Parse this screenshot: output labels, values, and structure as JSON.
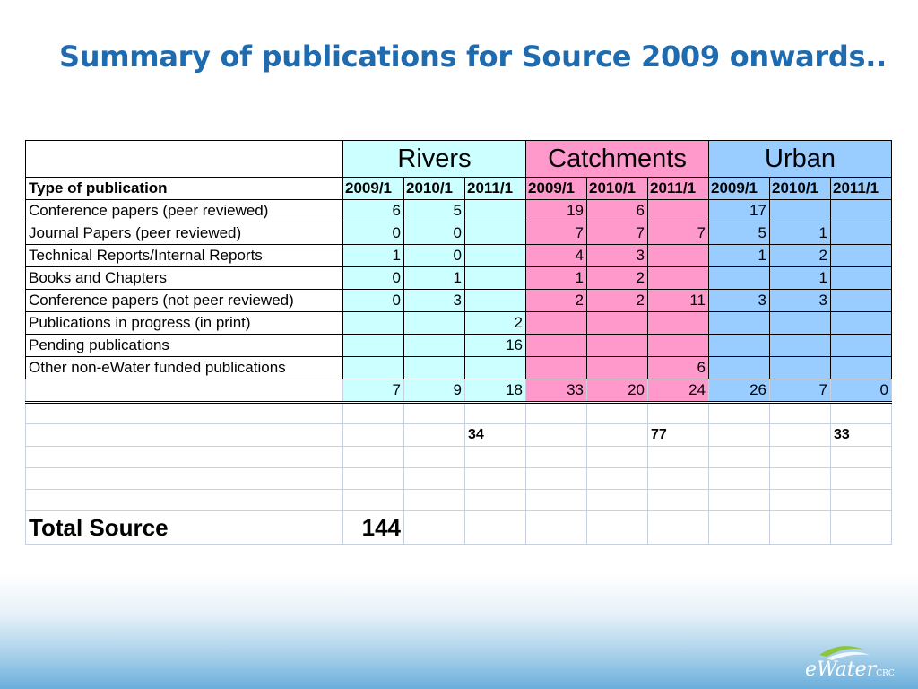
{
  "slide": {
    "title": "Summary of publications for Source 2009 onwards.."
  },
  "table": {
    "groups": [
      "Rivers",
      "Catchments",
      "Urban"
    ],
    "type_header": "Type of publication",
    "years": [
      "2009/1",
      "2010/1",
      "2011/1",
      "2009/1",
      "2010/1",
      "2011/1",
      "2009/1",
      "2010/1",
      "2011/1"
    ],
    "rows": [
      {
        "label": "Conference papers (peer reviewed)",
        "values": [
          "6",
          "5",
          "",
          "19",
          "6",
          "",
          "17",
          "",
          ""
        ]
      },
      {
        "label": "Journal Papers (peer reviewed)",
        "values": [
          "0",
          "0",
          "",
          "7",
          "7",
          "7",
          "5",
          "1",
          ""
        ]
      },
      {
        "label": "Technical Reports/Internal Reports",
        "values": [
          "1",
          "0",
          "",
          "4",
          "3",
          "",
          "1",
          "2",
          ""
        ]
      },
      {
        "label": "Books and Chapters",
        "values": [
          "0",
          "1",
          "",
          "1",
          "2",
          "",
          "",
          "1",
          ""
        ]
      },
      {
        "label": "Conference papers (not peer reviewed)",
        "values": [
          "0",
          "3",
          "",
          "2",
          "2",
          "11",
          "3",
          "3",
          ""
        ]
      },
      {
        "label": "Publications in progress (in print)",
        "values": [
          "",
          "",
          "2",
          "",
          "",
          "",
          "",
          "",
          ""
        ]
      },
      {
        "label": "Pending publications",
        "values": [
          "",
          "",
          "16",
          "",
          "",
          "",
          "",
          "",
          ""
        ]
      },
      {
        "label": "Other non-eWater funded publications",
        "values": [
          "",
          "",
          "",
          "",
          "",
          "6",
          "",
          "",
          ""
        ]
      }
    ],
    "column_totals": [
      "7",
      "9",
      "18",
      "33",
      "20",
      "24",
      "26",
      "7",
      "0"
    ],
    "group_totals": {
      "rivers": "34",
      "catchments": "77",
      "urban": "33"
    },
    "total_label": "Total Source",
    "total_value": "144"
  },
  "colors": {
    "rivers": "#ccffff",
    "catchments": "#ff99cc",
    "urban": "#99ccff",
    "title": "#1f6bb0"
  },
  "logo": {
    "name": "eWater",
    "suffix": "CRC",
    "icon": "ewater-logo-icon"
  }
}
